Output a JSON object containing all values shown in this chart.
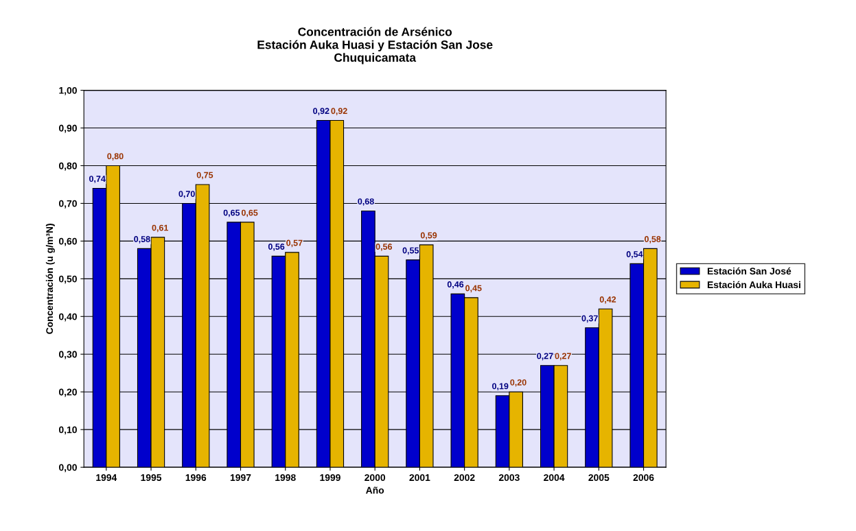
{
  "chart_data": {
    "type": "bar",
    "title": "Concentración de Arsénico\nEstación Auka Huasi y Estación San Jose\nChuquicamata",
    "xlabel": "Año",
    "ylabel": "Concentración (u g/m³N)",
    "categories": [
      "1994",
      "1995",
      "1996",
      "1997",
      "1998",
      "1999",
      "2000",
      "2001",
      "2002",
      "2003",
      "2004",
      "2005",
      "2006"
    ],
    "series": [
      {
        "name": "Estación San José",
        "color": "#0000cc",
        "values": [
          0.74,
          0.58,
          0.7,
          0.65,
          0.56,
          0.92,
          0.68,
          0.55,
          0.46,
          0.19,
          0.27,
          0.37,
          0.54
        ],
        "value_labels": [
          "0,74",
          "0,58",
          "0,70",
          "0,65",
          "0,56",
          "0,92",
          "0,68",
          "0,55",
          "0,46",
          "0,19",
          "0,27",
          "0,37",
          "0,54"
        ]
      },
      {
        "name": "Estación Auka Huasi",
        "color": "#e6b400",
        "values": [
          0.8,
          0.61,
          0.75,
          0.65,
          0.57,
          0.92,
          0.56,
          0.59,
          0.45,
          0.2,
          0.27,
          0.42,
          0.58
        ],
        "value_labels": [
          "0,80",
          "0,61",
          "0,75",
          "0,65",
          "0,57",
          "0,92",
          "0,56",
          "0,59",
          "0,45",
          "0,20",
          "0,27",
          "0,42",
          "0,58"
        ]
      }
    ],
    "ylim": [
      0,
      1
    ],
    "yticks": [
      {
        "value": 0,
        "label": "0,00"
      },
      {
        "value": 0.1,
        "label": "0,10"
      },
      {
        "value": 0.2,
        "label": "0,20"
      },
      {
        "value": 0.3,
        "label": "0,30"
      },
      {
        "value": 0.4,
        "label": "0,40"
      },
      {
        "value": 0.5,
        "label": "0,50"
      },
      {
        "value": 0.6,
        "label": "0,60"
      },
      {
        "value": 0.7,
        "label": "0,70"
      },
      {
        "value": 0.8,
        "label": "0,80"
      },
      {
        "value": 0.9,
        "label": "0,90"
      },
      {
        "value": 1.0,
        "label": "1,00"
      }
    ],
    "grid": "y",
    "legend": "right"
  }
}
